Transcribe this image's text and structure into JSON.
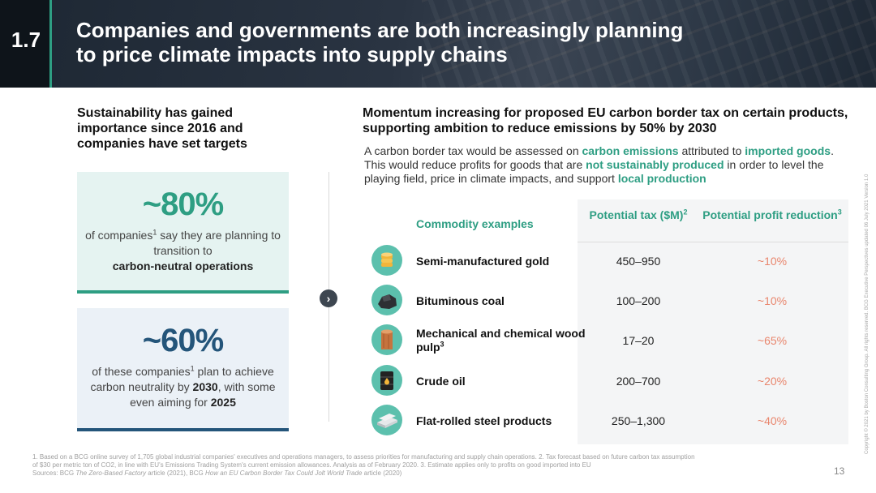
{
  "header": {
    "section_number": "1.7",
    "title_line1": "Companies and governments are both increasingly planning",
    "title_line2": "to price climate impacts into supply chains"
  },
  "left": {
    "heading": "Sustainability has gained importance since 2016 and companies have set targets",
    "card1": {
      "stat": "~80%",
      "text_pre": "of companies",
      "sup": "1",
      "text_mid": " say they are planning to transition to",
      "text_bold": "carbon-neutral operations"
    },
    "card2": {
      "stat": "~60%",
      "text_pre": "of these companies",
      "sup": "1",
      "text_mid": " plan to achieve carbon neutrality by ",
      "bold1": "2030",
      "text_mid2": ", with some even aiming for ",
      "bold2": "2025"
    }
  },
  "right": {
    "heading": "Momentum increasing for proposed EU carbon border tax on certain products, supporting ambition to reduce emissions by 50% by 2030",
    "desc": {
      "p1": "A carbon border tax would be assessed on ",
      "h1": "carbon emissions",
      "p2": " attributed to ",
      "h2": "imported goods",
      "p3": ". This would reduce profits for goods that are ",
      "h3": "not sustainably produced",
      "p4": " in order to level the playing field, price in climate impacts, and support ",
      "h4": "local production"
    },
    "table": {
      "col_commodity": "Commodity examples",
      "col_tax": "Potential tax ($M)",
      "col_tax_sup": "2",
      "col_reduction": "Potential profit reduction",
      "col_reduction_sup": "3",
      "rows": [
        {
          "icon": "gold-coins-icon",
          "name": "Semi-manufactured gold",
          "sup": "",
          "tax": "450–950",
          "reduction": "~10%"
        },
        {
          "icon": "coal-icon",
          "name": "Bituminous coal",
          "sup": "",
          "tax": "100–200",
          "reduction": "~10%"
        },
        {
          "icon": "wood-log-icon",
          "name": "Mechanical and chemical wood pulp",
          "sup": "3",
          "tax": "17–20",
          "reduction": "~65%"
        },
        {
          "icon": "oil-barrel-icon",
          "name": "Crude oil",
          "sup": "",
          "tax": "200–700",
          "reduction": "~20%"
        },
        {
          "icon": "steel-sheets-icon",
          "name": "Flat-rolled steel products",
          "sup": "",
          "tax": "250–1,300",
          "reduction": "~40%"
        }
      ]
    }
  },
  "footnote": {
    "line1": "1. Based on a BCG online survey of 1,705 global industrial companies' executives and operations managers, to assess priorities for manufacturing and supply chain operations. 2. Tax forecast based on future carbon tax assumption",
    "line2": "of $30 per metric ton of CO2, in line with EU's Emissions Trading System's current emission allowances. Analysis as of February 2020. 3. Estimate applies only to profits on good imported into EU",
    "sources_pre": "Sources: BCG ",
    "src1": "The Zero-Based Factory",
    "src1_post": " article (2021), BCG ",
    "src2": "How an EU Carbon Border Tax Could Jolt World Trade",
    "src2_post": " article (2020)"
  },
  "page_number": "13",
  "copyright": "Copyright © 2021 by Boston Consulting Group. All rights reserved. BCG Executive Perspectives updated 06 July 2021 Version 1.0",
  "colors": {
    "accent_green": "#2e9e83",
    "accent_navy": "#24557a",
    "reduction_orange": "#e9866d"
  }
}
